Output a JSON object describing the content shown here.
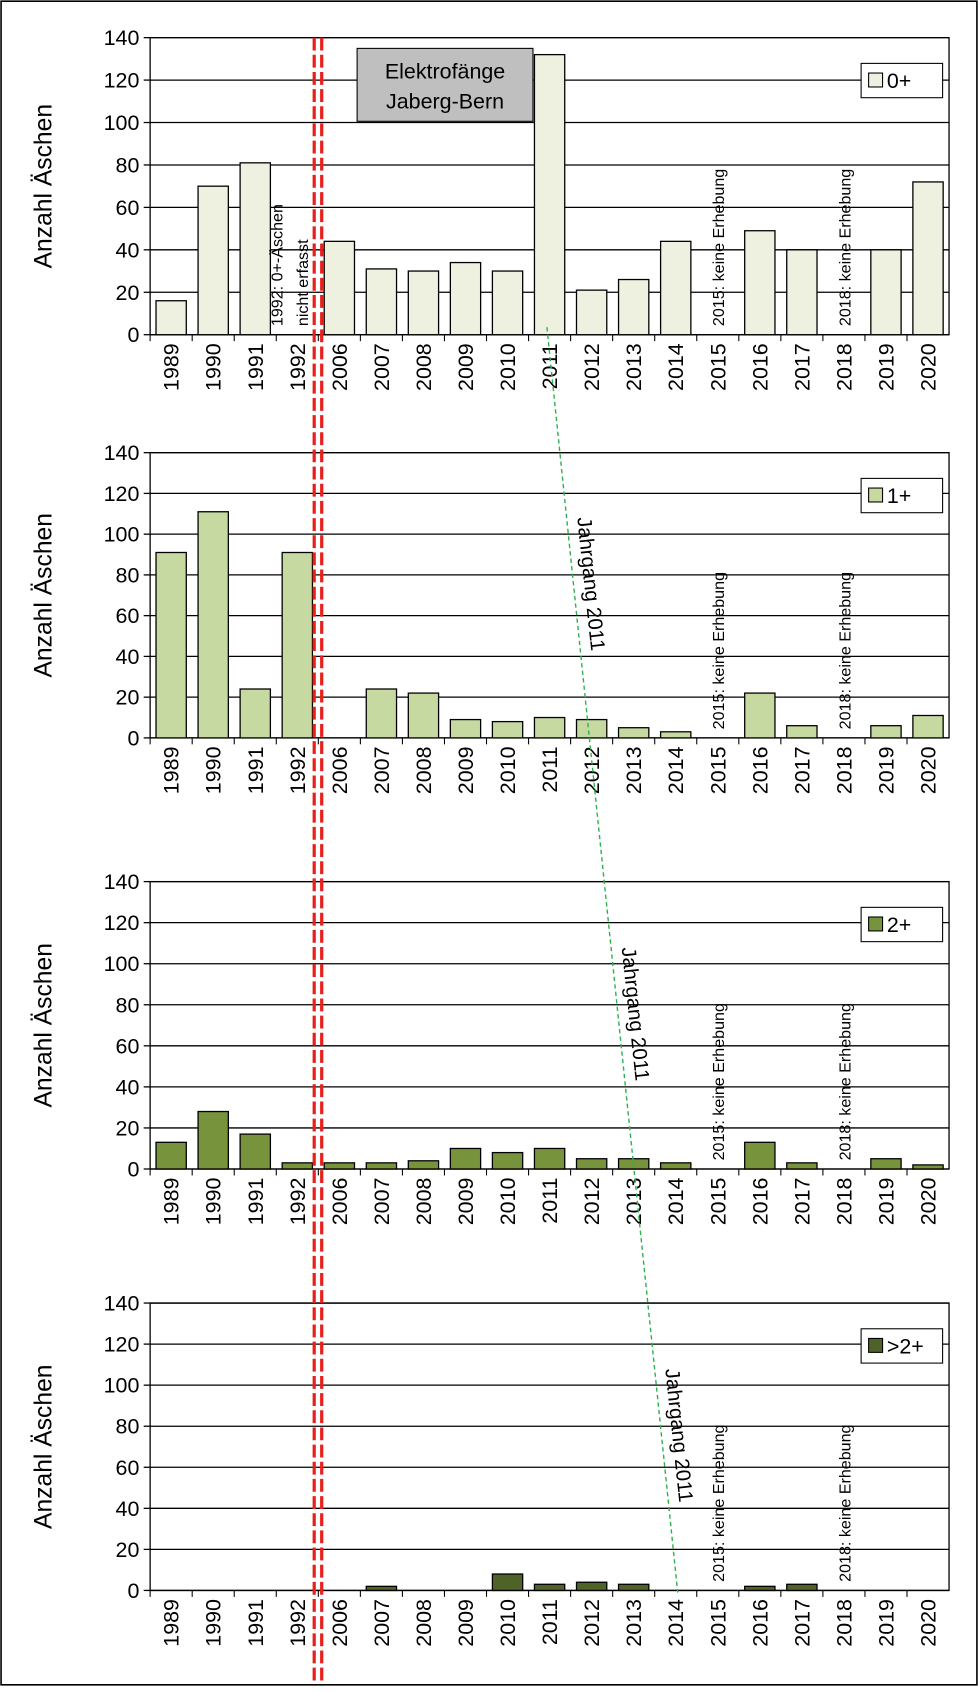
{
  "chart_data": [
    {
      "type": "bar",
      "y_label": "Anzahl Äschen",
      "legend": "0+",
      "color": "#eef0e0",
      "categories": [
        "1989",
        "1990",
        "1991",
        "1992",
        "2006",
        "2007",
        "2008",
        "2009",
        "2010",
        "2011",
        "2012",
        "2013",
        "2014",
        "2015",
        "2016",
        "2017",
        "2018",
        "2019",
        "2020"
      ],
      "values": [
        16,
        70,
        81,
        null,
        44,
        31,
        30,
        34,
        30,
        132,
        21,
        26,
        44,
        null,
        49,
        40,
        null,
        40,
        72
      ],
      "ylim": [
        0,
        140
      ],
      "yticks": [
        0,
        20,
        40,
        60,
        80,
        100,
        120,
        140
      ],
      "grid": true,
      "box_label": [
        "Elektrofänge",
        "Jaberg-Bern"
      ],
      "missing_note": [
        "1992: 0+-Äschen",
        "nicht erfasst"
      ],
      "gap_notes": [
        "2015: keine Erhebung",
        "2018: keine Erhebung"
      ]
    },
    {
      "type": "bar",
      "y_label": "Anzahl Äschen",
      "legend": "1+",
      "color": "#c5d9a0",
      "categories": [
        "1989",
        "1990",
        "1991",
        "1992",
        "2006",
        "2007",
        "2008",
        "2009",
        "2010",
        "2011",
        "2012",
        "2013",
        "2014",
        "2015",
        "2016",
        "2017",
        "2018",
        "2019",
        "2020"
      ],
      "values": [
        91,
        111,
        24,
        91,
        0,
        24,
        22,
        9,
        8,
        10,
        9,
        5,
        3,
        null,
        22,
        6,
        null,
        6,
        11
      ],
      "ylim": [
        0,
        140
      ],
      "yticks": [
        0,
        20,
        40,
        60,
        80,
        100,
        120,
        140
      ],
      "grid": true,
      "gap_notes": [
        "2015: keine Erhebung",
        "2018: keine Erhebung"
      ],
      "cohort_label": "Jahrgang 2011"
    },
    {
      "type": "bar",
      "y_label": "Anzahl Äschen",
      "legend": "2+",
      "color": "#77933c",
      "categories": [
        "1989",
        "1990",
        "1991",
        "1992",
        "2006",
        "2007",
        "2008",
        "2009",
        "2010",
        "2011",
        "2012",
        "2013",
        "2014",
        "2015",
        "2016",
        "2017",
        "2018",
        "2019",
        "2020"
      ],
      "values": [
        13,
        28,
        17,
        3,
        3,
        3,
        4,
        10,
        8,
        10,
        5,
        5,
        3,
        null,
        13,
        3,
        null,
        5,
        2
      ],
      "ylim": [
        0,
        140
      ],
      "yticks": [
        0,
        20,
        40,
        60,
        80,
        100,
        120,
        140
      ],
      "grid": true,
      "gap_notes": [
        "2015: keine Erhebung",
        "2018: keine Erhebung"
      ],
      "cohort_label": "Jahrgang 2011"
    },
    {
      "type": "bar",
      "y_label": "Anzahl Äschen",
      "legend": ">2+",
      "color": "#4f6228",
      "categories": [
        "1989",
        "1990",
        "1991",
        "1992",
        "2006",
        "2007",
        "2008",
        "2009",
        "2010",
        "2011",
        "2012",
        "2013",
        "2014",
        "2015",
        "2016",
        "2017",
        "2018",
        "2019",
        "2020"
      ],
      "values": [
        0,
        0,
        0,
        0,
        0,
        2,
        0,
        0,
        8,
        3,
        4,
        3,
        0,
        null,
        2,
        3,
        null,
        0,
        0
      ],
      "ylim": [
        0,
        140
      ],
      "yticks": [
        0,
        20,
        40,
        60,
        80,
        100,
        120,
        140
      ],
      "grid": true,
      "gap_notes": [
        "2015: keine Erhebung",
        "2018: keine Erhebung"
      ],
      "cohort_label": "Jahrgang 2011"
    }
  ]
}
